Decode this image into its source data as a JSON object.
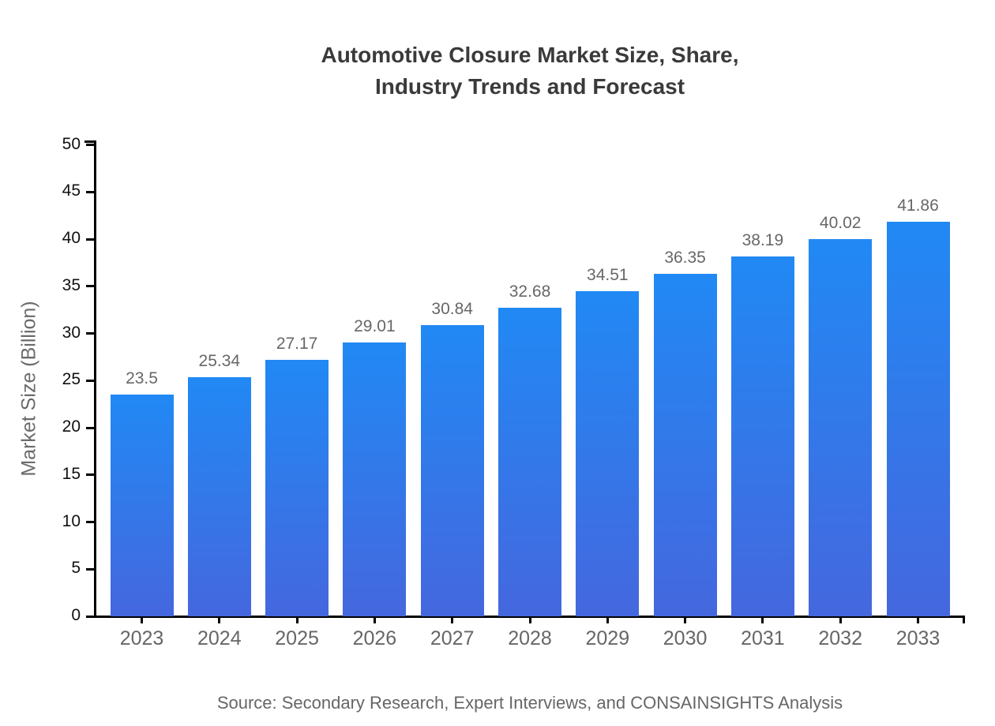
{
  "title": {
    "line1": "Automotive Closure Market Size, Share,",
    "line2": "Industry Trends and Forecast"
  },
  "source": "Source: Secondary Research, Expert Interviews, and CONSAINSIGHTS Analysis",
  "chart_data": {
    "type": "bar",
    "title": "Automotive Closure Market Size, Share, Industry Trends and Forecast",
    "categories": [
      "2023",
      "2024",
      "2025",
      "2026",
      "2027",
      "2028",
      "2029",
      "2030",
      "2031",
      "2032",
      "2033"
    ],
    "values": [
      23.5,
      25.34,
      27.17,
      29.01,
      30.84,
      32.68,
      34.51,
      36.35,
      38.19,
      40.02,
      41.86
    ],
    "value_labels": [
      "23.5",
      "25.34",
      "27.17",
      "29.01",
      "30.84",
      "32.68",
      "34.51",
      "36.35",
      "38.19",
      "40.02",
      "41.86"
    ],
    "xlabel": "",
    "ylabel": "Market Size (Billion)",
    "ylim": [
      0,
      50
    ],
    "ytick_step": 5,
    "ytick_labels": [
      "0",
      "5",
      "10",
      "15",
      "20",
      "25",
      "30",
      "35",
      "40",
      "45",
      "50"
    ],
    "grid": false,
    "legend": "none",
    "colors": {
      "bar_gradient_top": "#2189f4",
      "bar_gradient_bottom": "#4567de",
      "axis": "#000000",
      "y_tick_label": "#111111",
      "x_tick_label": "#666666",
      "value_label": "#676767",
      "title": "#3a3a3a",
      "source": "#666666",
      "ylabel_color": "#6b6b6b",
      "background": "#ffffff"
    }
  }
}
